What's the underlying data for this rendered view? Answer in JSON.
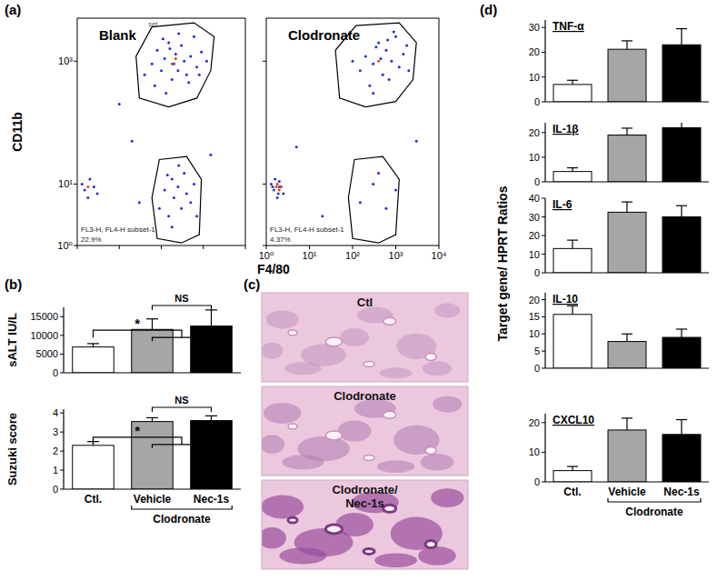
{
  "chart_data": [
    {
      "type": "scatter",
      "panel": "(a)",
      "title": "Blank",
      "ylabel": "CD11b",
      "log": true,
      "xlim": [
        1,
        10000
      ],
      "ylim": [
        1,
        5000
      ],
      "xticks": [
        1,
        10,
        100,
        1000,
        10000
      ],
      "yticks": [
        {
          "value": 1,
          "label": "10⁰"
        },
        {
          "value": 10,
          "label": "10¹"
        },
        {
          "value": 1000,
          "label": "10³"
        }
      ],
      "tick_labels": "y",
      "annotations": [
        "set",
        "FL3-H, FL4-H subset-1",
        "22.9%"
      ],
      "gates": [
        {
          "points": [
            [
              30,
              250
            ],
            [
              25,
              1200
            ],
            [
              60,
              3600
            ],
            [
              600,
              4200
            ],
            [
              1800,
              2500
            ],
            [
              1500,
              700
            ],
            [
              700,
              250
            ],
            [
              150,
              180
            ]
          ]
        },
        {
          "points": [
            [
              80,
              1.3
            ],
            [
              60,
              6
            ],
            [
              90,
              25
            ],
            [
              400,
              28
            ],
            [
              900,
              12
            ],
            [
              800,
              1.5
            ],
            [
              300,
              1.1
            ]
          ]
        }
      ],
      "series": [
        {
          "color": "#1f2fd0",
          "x": [
            40,
            60,
            80,
            100,
            120,
            150,
            180,
            200,
            220,
            250,
            300,
            350,
            400,
            500,
            600,
            700,
            900,
            1200,
            70,
            130,
            160,
            260,
            450,
            800,
            110,
            90,
            120,
            150,
            180,
            200,
            250,
            300,
            350,
            400,
            500,
            600,
            180,
            260,
            140,
            700,
            1.5,
            2,
            1.8,
            2.5,
            1.3,
            3,
            20,
            30,
            1500,
            10
          ],
          "values": [
            600,
            900,
            1500,
            700,
            1100,
            2000,
            500,
            900,
            1300,
            700,
            1800,
            1000,
            600,
            1200,
            2500,
            800,
            1400,
            1000,
            400,
            300,
            1600,
            2800,
            450,
            600,
            2300,
            4,
            8,
            3,
            12,
            6,
            9,
            4,
            15,
            7,
            5,
            10,
            2,
            20,
            14,
            3,
            8,
            12,
            6,
            9,
            10,
            7,
            50,
            5,
            30,
            200
          ]
        },
        {
          "color": "#e0401f",
          "x": [
            180,
            220,
            1.8
          ],
          "values": [
            900,
            1100,
            9
          ]
        }
      ]
    },
    {
      "type": "scatter",
      "title": "Clodronate",
      "xlabel": "F4/80",
      "log": true,
      "xlim": [
        1,
        10000
      ],
      "ylim": [
        1,
        5000
      ],
      "xticks": [
        {
          "value": 1,
          "label": "10⁰"
        },
        {
          "value": 10,
          "label": "10¹"
        },
        {
          "value": 100,
          "label": "10²"
        },
        {
          "value": 1000,
          "label": "10³"
        },
        {
          "value": 10000,
          "label": "10⁴"
        }
      ],
      "yticks": [
        1,
        10,
        1000
      ],
      "tick_labels": "x",
      "annotations": [
        "FL3-H, FL4-H subset-1",
        "4.37%"
      ],
      "gates": [
        {
          "points": [
            [
              50,
              250
            ],
            [
              40,
              1500
            ],
            [
              120,
              3800
            ],
            [
              1200,
              4200
            ],
            [
              3000,
              2000
            ],
            [
              2500,
              500
            ],
            [
              1000,
              220
            ],
            [
              200,
              180
            ]
          ]
        },
        {
          "points": [
            [
              100,
              1.3
            ],
            [
              80,
              6
            ],
            [
              110,
              25
            ],
            [
              500,
              28
            ],
            [
              1200,
              12
            ],
            [
              1000,
              1.5
            ],
            [
              400,
              1.1
            ]
          ]
        }
      ],
      "series": [
        {
          "color": "#1f2fd0",
          "x": [
            150,
            200,
            300,
            400,
            500,
            600,
            800,
            1000,
            1200,
            1500,
            2000,
            250,
            350,
            700,
            900,
            100,
            450,
            1800,
            650,
            300,
            150,
            300,
            600,
            1000,
            400,
            1.5,
            2,
            1.8,
            2.2,
            1.3,
            2.5,
            1.6,
            2,
            1.9,
            1.4,
            20,
            5,
            3000
          ],
          "values": [
            700,
            1200,
            900,
            2000,
            600,
            1500,
            1000,
            2500,
            800,
            1300,
            700,
            400,
            1700,
            500,
            3000,
            1000,
            1100,
            1800,
            2200,
            300,
            5,
            10,
            4,
            8,
            15,
            8,
            11,
            6,
            9,
            10,
            7,
            12,
            9,
            7,
            9,
            3,
            40,
            50
          ]
        },
        {
          "color": "#e0401f",
          "x": [
            1.7,
            2,
            1.8,
            2.1,
            400
          ],
          "values": [
            9,
            8,
            10,
            9,
            1000
          ]
        }
      ]
    },
    {
      "type": "bar",
      "panel": "(b)",
      "ylabel": "sALT IU/L",
      "values": [
        6900,
        11600,
        12500
      ],
      "errors": [
        900,
        2800,
        4300
      ],
      "colors": [
        "#ffffff",
        "#a6a6a6",
        "#000000"
      ],
      "ylim": [
        0,
        17500
      ],
      "yticks": [
        0,
        5000,
        10000,
        15000
      ],
      "tick_labels": "y",
      "annotations": [
        "*",
        "NS"
      ]
    },
    {
      "type": "bar",
      "ylabel": "Suzuki score",
      "categories": [
        "Ctl.",
        "Vehicle",
        "Nec-1s"
      ],
      "values": [
        2.3,
        3.55,
        3.6
      ],
      "errors": [
        0.2,
        0.2,
        0.25
      ],
      "colors": [
        "#ffffff",
        "#a6a6a6",
        "#000000"
      ],
      "ylim": [
        0,
        4.2
      ],
      "yticks": [
        0,
        1,
        2,
        3,
        4
      ],
      "annotations": [
        "*",
        "NS",
        "Clodronate"
      ]
    },
    {
      "type": "bar",
      "panel": "(d)",
      "title": "TNF-α",
      "values": [
        7,
        21.2,
        23
      ],
      "errors": [
        1.7,
        3.4,
        6.5
      ],
      "colors": [
        "#ffffff",
        "#a6a6a6",
        "#000000"
      ],
      "ylim": [
        0,
        33
      ],
      "yticks": [
        0,
        10,
        20,
        30
      ],
      "tick_labels": "y"
    },
    {
      "type": "bar",
      "title": "IL-1β",
      "values": [
        4.2,
        19,
        22
      ],
      "errors": [
        1.5,
        2.8,
        2.3
      ],
      "colors": [
        "#ffffff",
        "#a6a6a6",
        "#000000"
      ],
      "ylim": [
        0,
        24
      ],
      "yticks": [
        0,
        10,
        20
      ],
      "tick_labels": "y"
    },
    {
      "type": "bar",
      "title": "IL-6",
      "ylabel": "Target gene/ HPRT Ratios",
      "values": [
        13,
        32.5,
        30
      ],
      "errors": [
        4.5,
        5.5,
        6
      ],
      "colors": [
        "#ffffff",
        "#a6a6a6",
        "#000000"
      ],
      "ylim": [
        0,
        40
      ],
      "yticks": [
        0,
        10,
        20,
        30,
        40
      ],
      "tick_labels": "y"
    },
    {
      "type": "bar",
      "title": "IL-10",
      "values": [
        15.7,
        7.8,
        9
      ],
      "errors": [
        2.5,
        2.2,
        2.4
      ],
      "colors": [
        "#ffffff",
        "#a6a6a6",
        "#000000"
      ],
      "ylim": [
        0,
        22
      ],
      "yticks": [
        0,
        5,
        10,
        15,
        20
      ],
      "tick_labels": "y"
    },
    {
      "type": "bar",
      "title": "CXCL10",
      "categories": [
        "Ctl.",
        "Vehicle",
        "Nec-1s"
      ],
      "values": [
        3.8,
        17.5,
        16
      ],
      "errors": [
        1.4,
        4,
        5
      ],
      "colors": [
        "#ffffff",
        "#a6a6a6",
        "#000000"
      ],
      "ylim": [
        0,
        23
      ],
      "yticks": [
        0,
        10,
        20
      ],
      "annotations": [
        "Clodronate"
      ]
    }
  ],
  "images": {
    "label": "(c)",
    "captions": [
      "Ctl",
      "Clodronate",
      "Clodronate/ Nec-1s"
    ]
  }
}
